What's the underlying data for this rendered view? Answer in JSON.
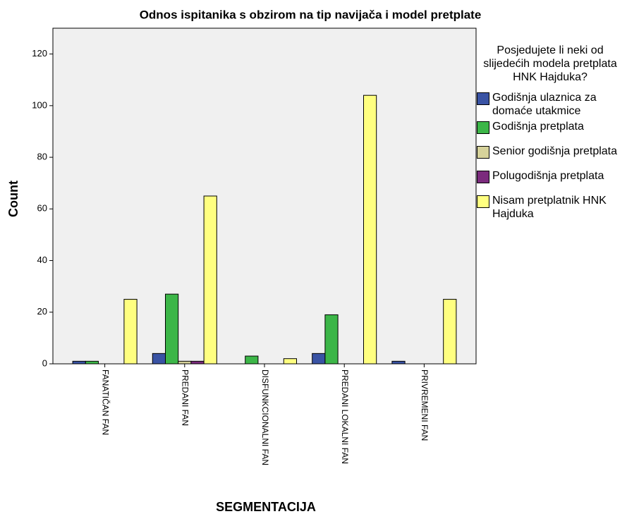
{
  "chart_data": {
    "type": "bar",
    "title": "Odnos ispitanika s obzirom na tip navijača i model pretplate",
    "x_label": "SEGMENTACIJA",
    "y_label": "Count",
    "legend_title": "Posjedujete li neki od slijedećih modela pretplata HNK Hajduka?",
    "categories": [
      "FANATIČAN FAN",
      "PREDANI FAN",
      "DISFUNKCIONALNI FAN",
      "PREDANI LOKALNI FAN",
      "PRIVREMENI FAN"
    ],
    "series": [
      {
        "name": "Godišnja ulaznica za domaće utakmice",
        "color": "#3953a4",
        "values": [
          1,
          4,
          0,
          4,
          1
        ]
      },
      {
        "name": "Godišnja pretplata",
        "color": "#3cb648",
        "values": [
          1,
          27,
          3,
          19,
          0
        ]
      },
      {
        "name": "Senior godišnja pretplata",
        "color": "#d6d29a",
        "values": [
          0,
          1,
          0,
          0,
          0
        ]
      },
      {
        "name": "Polugodišnja pretplata",
        "color": "#7b2b7d",
        "values": [
          0,
          1,
          0,
          0,
          0
        ]
      },
      {
        "name": "Nisam pretplatnik HNK Hajduka",
        "color": "#ffff80",
        "values": [
          25,
          65,
          2,
          104,
          25
        ]
      }
    ],
    "ylim": [
      0,
      130
    ],
    "yticks": [
      0,
      20,
      40,
      60,
      80,
      100,
      120
    ],
    "legend": "right"
  }
}
